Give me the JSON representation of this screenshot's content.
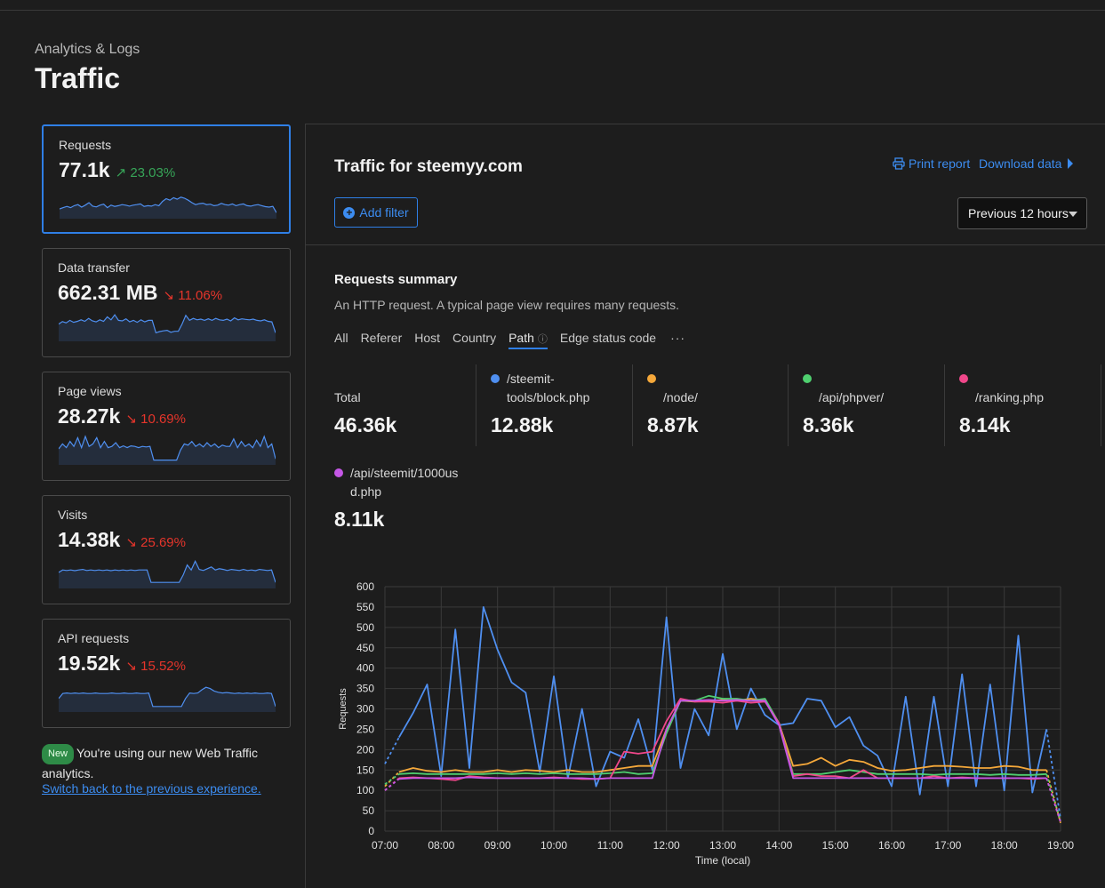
{
  "header": {
    "breadcrumb": "Analytics & Logs",
    "title": "Traffic"
  },
  "metrics": [
    {
      "label": "Requests",
      "value": "77.1k",
      "change": "23.03%",
      "direction": "up",
      "arrow": "↗",
      "spark": [
        0.25,
        0.3,
        0.35,
        0.3,
        0.38,
        0.42,
        0.32,
        0.4,
        0.5,
        0.36,
        0.33,
        0.4,
        0.44,
        0.3,
        0.4,
        0.35,
        0.38,
        0.42,
        0.4,
        0.36,
        0.4,
        0.42,
        0.45,
        0.35,
        0.38,
        0.36,
        0.42,
        0.38,
        0.55,
        0.66,
        0.6,
        0.7,
        0.64,
        0.72,
        0.68,
        0.6,
        0.5,
        0.42,
        0.46,
        0.48,
        0.42,
        0.44,
        0.38,
        0.4,
        0.47,
        0.42,
        0.4,
        0.45,
        0.38,
        0.42,
        0.45,
        0.38,
        0.36,
        0.4,
        0.42,
        0.38,
        0.34,
        0.32,
        0.35,
        0.1
      ]
    },
    {
      "label": "Data transfer",
      "value": "662.31 MB",
      "change": "11.06%",
      "direction": "down",
      "arrow": "↘",
      "spark": [
        0.55,
        0.65,
        0.6,
        0.7,
        0.62,
        0.66,
        0.72,
        0.66,
        0.78,
        0.68,
        0.64,
        0.72,
        0.66,
        0.84,
        0.72,
        0.92,
        0.7,
        0.68,
        0.76,
        0.64,
        0.7,
        0.62,
        0.72,
        0.64,
        0.7,
        0.7,
        0.2,
        0.25,
        0.28,
        0.3,
        0.22,
        0.26,
        0.26,
        0.55,
        0.9,
        0.7,
        0.78,
        0.72,
        0.75,
        0.7,
        0.76,
        0.7,
        0.78,
        0.72,
        0.7,
        0.75,
        0.68,
        0.8,
        0.72,
        0.76,
        0.74,
        0.72,
        0.75,
        0.7,
        0.68,
        0.72,
        0.66,
        0.64,
        0.2
      ]
    },
    {
      "label": "Page views",
      "value": "28.27k",
      "change": "10.69%",
      "direction": "down",
      "arrow": "↘",
      "spark": [
        0.5,
        0.7,
        0.55,
        0.8,
        0.6,
        0.95,
        0.55,
        1.0,
        0.6,
        0.7,
        0.95,
        0.55,
        0.8,
        0.55,
        0.6,
        0.75,
        0.55,
        0.62,
        0.55,
        0.62,
        0.6,
        0.55,
        0.6,
        0.58,
        0.6,
        0.05,
        0.05,
        0.05,
        0.05,
        0.05,
        0.05,
        0.05,
        0.45,
        0.7,
        0.65,
        0.8,
        0.6,
        0.7,
        0.58,
        0.75,
        0.6,
        0.7,
        0.55,
        0.65,
        0.6,
        0.6,
        0.9,
        0.55,
        0.8,
        0.6,
        0.7,
        0.55,
        0.85,
        0.6,
        1.0,
        0.55,
        0.7,
        0.1
      ]
    },
    {
      "label": "Visits",
      "value": "14.38k",
      "change": "25.69%",
      "direction": "down",
      "arrow": "↘",
      "spark": [
        0.5,
        0.6,
        0.58,
        0.6,
        0.57,
        0.6,
        0.62,
        0.58,
        0.6,
        0.58,
        0.6,
        0.58,
        0.6,
        0.57,
        0.6,
        0.58,
        0.6,
        0.58,
        0.6,
        0.58,
        0.6,
        0.6,
        0.6,
        0.1,
        0.1,
        0.1,
        0.1,
        0.1,
        0.1,
        0.1,
        0.1,
        0.4,
        0.8,
        0.6,
        0.95,
        0.62,
        0.58,
        0.65,
        0.72,
        0.6,
        0.65,
        0.62,
        0.58,
        0.62,
        0.6,
        0.58,
        0.62,
        0.58,
        0.6,
        0.57,
        0.62,
        0.6,
        0.58,
        0.6,
        0.1
      ]
    },
    {
      "label": "API requests",
      "value": "19.52k",
      "change": "15.52%",
      "direction": "down",
      "arrow": "↘",
      "spark": [
        0.4,
        0.6,
        0.62,
        0.6,
        0.62,
        0.6,
        0.62,
        0.6,
        0.6,
        0.62,
        0.6,
        0.6,
        0.6,
        0.62,
        0.6,
        0.6,
        0.62,
        0.6,
        0.6,
        0.62,
        0.6,
        0.6,
        0.62,
        0.08,
        0.08,
        0.08,
        0.08,
        0.08,
        0.08,
        0.08,
        0.08,
        0.4,
        0.62,
        0.6,
        0.62,
        0.75,
        0.85,
        0.8,
        0.7,
        0.65,
        0.62,
        0.64,
        0.62,
        0.6,
        0.62,
        0.6,
        0.62,
        0.6,
        0.62,
        0.6,
        0.6,
        0.62,
        0.6,
        0.08
      ]
    }
  ],
  "notice": {
    "badge": "New",
    "text": "You're using our new Web Traffic analytics.",
    "link": "Switch back to the previous experience."
  },
  "panel": {
    "title": "Traffic for steemyy.com",
    "print_report": "Print report",
    "download_data": "Download data",
    "add_filter": "Add filter",
    "time_range": "Previous 12 hours"
  },
  "summary": {
    "title": "Requests summary",
    "description": "An HTTP request. A typical page view requires many requests.",
    "tabs": [
      "All",
      "Referer",
      "Host",
      "Country",
      "Path",
      "Edge status code"
    ],
    "active_tab": "Path",
    "more": "···",
    "total_label": "Total",
    "total_value": "46.36k",
    "paths": [
      {
        "name_line1": "/steemit-",
        "name_line2": "tools/block.php",
        "value": "12.88k",
        "color": "#4f8ff0"
      },
      {
        "name_line1": "/node/",
        "name_line2": "",
        "value": "8.87k",
        "color": "#f5a83a"
      },
      {
        "name_line1": "/api/phpver/",
        "name_line2": "",
        "value": "8.36k",
        "color": "#4fcf6f"
      },
      {
        "name_line1": "/ranking.php",
        "name_line2": "",
        "value": "8.14k",
        "color": "#f0478a"
      },
      {
        "name_line1": "/api/steemit/1000us",
        "name_line2": "d.php",
        "value": "8.11k",
        "color": "#c557e6"
      }
    ]
  },
  "chart_data": {
    "type": "line",
    "ylabel": "Requests",
    "xlabel": "Time (local)",
    "ylim": [
      0,
      600
    ],
    "yticks": [
      "0",
      "50",
      "100",
      "150",
      "200",
      "250",
      "300",
      "350",
      "400",
      "450",
      "500",
      "550",
      "600"
    ],
    "xticks": [
      "07:00",
      "08:00",
      "09:00",
      "10:00",
      "11:00",
      "12:00",
      "13:00",
      "14:00",
      "15:00",
      "16:00",
      "17:00",
      "18:00",
      "19:00"
    ],
    "grid": true,
    "x_start_hour": 7,
    "x_step_minutes": 15,
    "series": [
      {
        "name": "/steemit-tools/block.php",
        "color": "#4f8ff0",
        "values": [
          165,
          230,
          290,
          360,
          135,
          495,
          155,
          550,
          445,
          365,
          340,
          145,
          380,
          130,
          300,
          110,
          195,
          180,
          275,
          150,
          525,
          155,
          300,
          235,
          435,
          250,
          350,
          285,
          260,
          265,
          325,
          320,
          255,
          280,
          210,
          185,
          110,
          330,
          90,
          330,
          110,
          385,
          110,
          360,
          100,
          480,
          95,
          250,
          30
        ]
      },
      {
        "name": "/node/",
        "color": "#f5a83a",
        "values": [
          110,
          145,
          155,
          148,
          145,
          150,
          145,
          145,
          150,
          145,
          150,
          148,
          145,
          150,
          145,
          145,
          150,
          155,
          160,
          160,
          250,
          320,
          318,
          320,
          322,
          320,
          325,
          320,
          265,
          160,
          165,
          180,
          160,
          175,
          170,
          155,
          148,
          150,
          155,
          160,
          160,
          158,
          155,
          155,
          160,
          158,
          150,
          150,
          20
        ]
      },
      {
        "name": "/api/phpver/",
        "color": "#4fcf6f",
        "values": [
          115,
          140,
          142,
          140,
          140,
          140,
          140,
          140,
          142,
          140,
          142,
          140,
          142,
          140,
          140,
          140,
          142,
          145,
          140,
          142,
          240,
          320,
          320,
          332,
          325,
          325,
          320,
          325,
          265,
          140,
          140,
          140,
          145,
          150,
          145,
          140,
          140,
          140,
          140,
          138,
          140,
          140,
          140,
          138,
          140,
          138,
          138,
          140,
          25
        ]
      },
      {
        "name": "/ranking.php",
        "color": "#f0478a",
        "values": [
          100,
          130,
          132,
          130,
          128,
          125,
          135,
          132,
          130,
          130,
          130,
          130,
          132,
          130,
          128,
          128,
          130,
          195,
          190,
          195,
          270,
          325,
          318,
          318,
          315,
          320,
          315,
          318,
          265,
          135,
          140,
          135,
          135,
          130,
          150,
          130,
          130,
          130,
          130,
          135,
          130,
          132,
          130,
          130,
          130,
          130,
          128,
          130,
          22
        ]
      },
      {
        "name": "/api/steemit/1000usd.php",
        "color": "#c557e6",
        "values": [
          100,
          128,
          130,
          130,
          130,
          130,
          132,
          130,
          130,
          130,
          130,
          130,
          130,
          130,
          130,
          128,
          130,
          130,
          130,
          130,
          250,
          320,
          320,
          322,
          320,
          322,
          320,
          320,
          260,
          130,
          130,
          130,
          130,
          130,
          130,
          130,
          130,
          130,
          130,
          130,
          130,
          130,
          130,
          130,
          130,
          130,
          130,
          130,
          22
        ]
      }
    ]
  }
}
